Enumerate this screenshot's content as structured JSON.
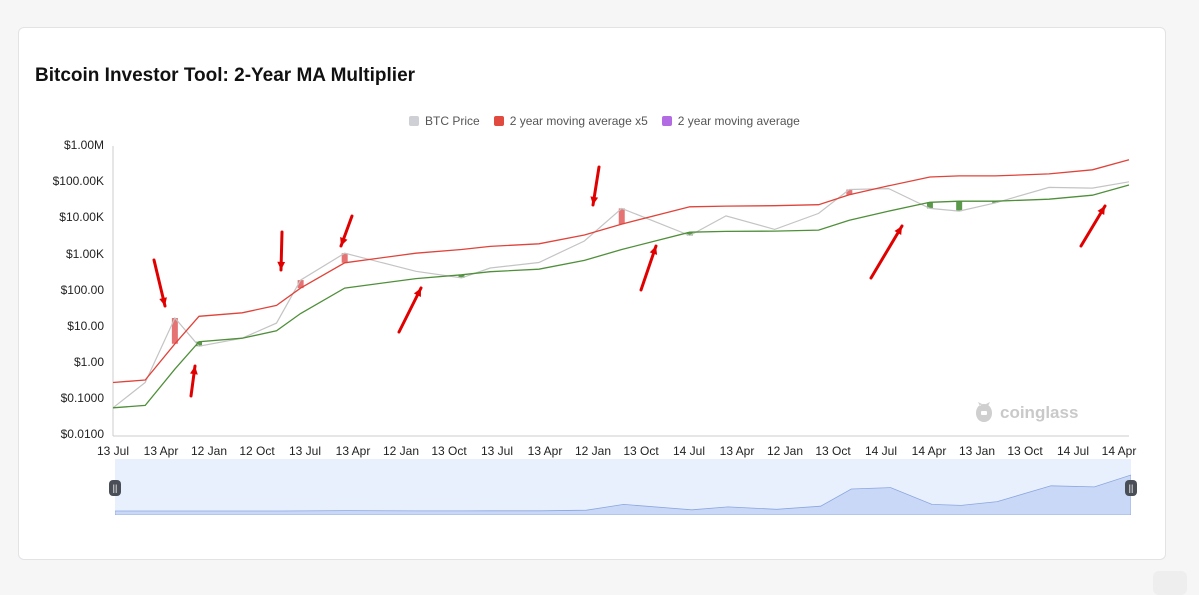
{
  "title": "Bitcoin Investor Tool: 2-Year MA Multiplier",
  "legend": [
    {
      "label": "BTC Price",
      "color": "#cfcfd6"
    },
    {
      "label": "2 year moving average x5",
      "color": "#e04a3f"
    },
    {
      "label": "2 year moving average",
      "color": "#b36be3"
    }
  ],
  "watermark": "coinglass",
  "colors": {
    "price_line": "#c4c4c4",
    "ma_x5_line": "#e0433a",
    "ma_line": "#4f8f3a",
    "overheat_fill": "#e57373",
    "undervalue_fill": "#5a9a4a",
    "arrow": "#e00000",
    "navigator_fill": "#c9d8f6",
    "navigator_bg": "#e8f0fd"
  },
  "icons": [
    "coinglass-logo-icon",
    "navigator-handle-icon"
  ],
  "chart_data": {
    "type": "line",
    "title": "Bitcoin Investor Tool: 2-Year MA Multiplier",
    "y_scale": "log",
    "ylim": [
      0.01,
      1000000
    ],
    "y_ticks": [
      "$1.00M",
      "$100.00K",
      "$10.00K",
      "$1.00K",
      "$100.00",
      "$10.00",
      "$1.00",
      "$0.1000",
      "$0.0100"
    ],
    "x_ticks": [
      "13 Jul",
      "13 Apr",
      "12 Jan",
      "12 Oct",
      "13 Jul",
      "13 Apr",
      "12 Jan",
      "13 Oct",
      "13 Jul",
      "13 Apr",
      "12 Jan",
      "13 Oct",
      "14 Jul",
      "13 Apr",
      "12 Jan",
      "13 Oct",
      "14 Jul",
      "14 Apr",
      "13 Jan",
      "13 Oct",
      "14 Jul",
      "14 Apr"
    ],
    "x": [
      "2010-07-13",
      "2011-01-01",
      "2011-06-08",
      "2011-10-15",
      "2012-06-01",
      "2012-12-01",
      "2013-04-09",
      "2013-11-30",
      "2014-12-15",
      "2015-08-15",
      "2016-01-15",
      "2016-10-01",
      "2017-06-01",
      "2017-12-17",
      "2018-12-15",
      "2019-06-26",
      "2020-03-12",
      "2020-11-01",
      "2021-04-14",
      "2021-11-10",
      "2022-06-18",
      "2022-11-21",
      "2023-06-01",
      "2024-03-14",
      "2024-11-01",
      "2025-05-15"
    ],
    "series": [
      {
        "name": "BTC Price",
        "values": [
          0.06,
          0.3,
          18,
          3,
          5,
          13,
          200,
          1100,
          350,
          230,
          430,
          610,
          2400,
          19000,
          3400,
          11800,
          5000,
          13800,
          63000,
          67000,
          19000,
          16000,
          27000,
          72000,
          69000,
          103000
        ]
      },
      {
        "name": "2 year moving average x5",
        "values": [
          0.3,
          0.35,
          3.5,
          20,
          25,
          40,
          120,
          600,
          1100,
          1400,
          1700,
          2000,
          3500,
          7000,
          21000,
          22000,
          22500,
          24000,
          45000,
          80000,
          140000,
          150000,
          150000,
          170000,
          220000,
          420000
        ]
      },
      {
        "name": "2 year moving average",
        "values": [
          0.06,
          0.07,
          0.7,
          4,
          5,
          8,
          24,
          120,
          220,
          280,
          340,
          400,
          700,
          1400,
          4200,
          4400,
          4500,
          4800,
          9000,
          16000,
          28000,
          30000,
          30000,
          34000,
          44000,
          84000
        ]
      }
    ]
  }
}
